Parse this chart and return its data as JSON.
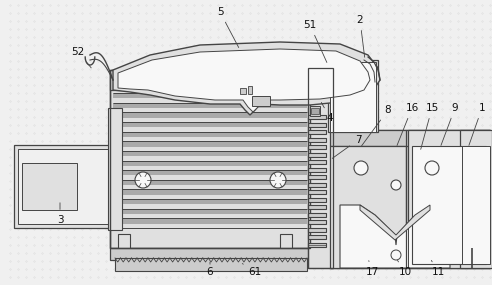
{
  "bg": "#f0f0f0",
  "lc": "#444444",
  "fc_light": "#e0e0e0",
  "fc_mid": "#cccccc",
  "fc_dark": "#aaaaaa",
  "fc_white": "#f8f8f8",
  "figsize": [
    4.92,
    2.85
  ],
  "dpi": 100
}
